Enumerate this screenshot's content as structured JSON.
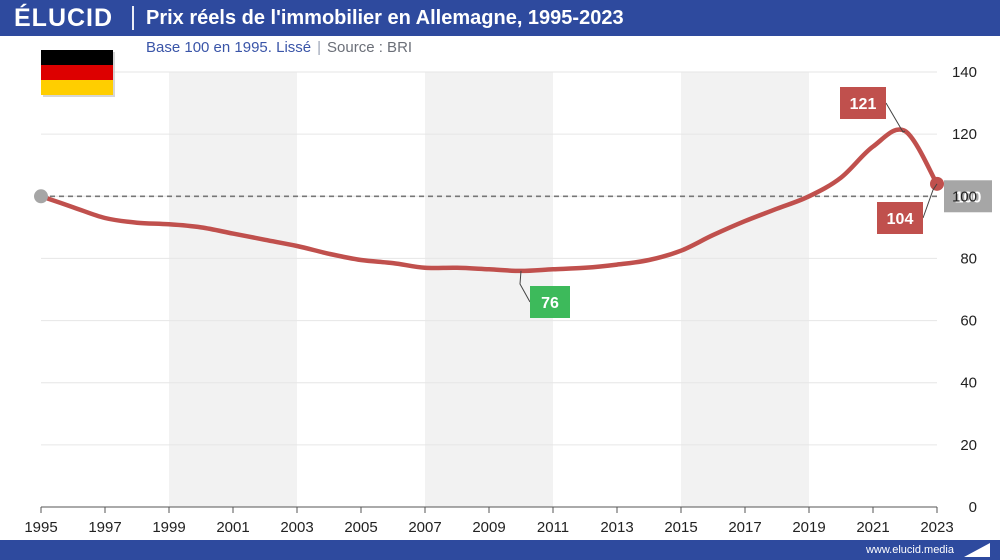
{
  "brand": {
    "logo": "ÉLUCID"
  },
  "header": {
    "title": "Prix réels de l'immobilier en Allemagne, 1995-2023",
    "subtitle": "Base 100 en 1995. Lissé",
    "separator": "|",
    "source": "Source : BRI"
  },
  "footer": {
    "url": "www.elucid.media"
  },
  "colors": {
    "header_bg": "#2e4a9e",
    "line": "#c0504d",
    "low_callout": "#3dba5b",
    "high_callout": "#c0504d",
    "reference_box": "#a6a6a6",
    "band": "#f2f2f2"
  },
  "flag": {
    "icon": "germany-flag-icon",
    "stripes": [
      "#000000",
      "#dd0000",
      "#ffce00"
    ]
  },
  "chart_data": {
    "type": "line",
    "title": "Prix réels de l'immobilier en Allemagne, 1995-2023",
    "subtitle": "Base 100 en 1995. Lissé",
    "xlim": [
      1995,
      2023
    ],
    "ylim": [
      0,
      140
    ],
    "x_ticks": [
      1995,
      1997,
      1999,
      2001,
      2003,
      2005,
      2007,
      2009,
      2011,
      2013,
      2015,
      2017,
      2019,
      2021,
      2023
    ],
    "x_tick_labels": [
      "1995",
      "1997",
      "1999",
      "2001",
      "2003",
      "2005",
      "2007",
      "2009",
      "2011",
      "2013",
      "2015",
      "2017",
      "2019",
      "2021",
      "2023"
    ],
    "y_ticks": [
      0,
      20,
      40,
      60,
      80,
      100,
      120,
      140
    ],
    "y_tick_labels": [
      "0",
      "20",
      "40",
      "60",
      "80",
      "100",
      "120",
      "140"
    ],
    "y_axis_side": "right",
    "alternating_bands": [
      [
        1999,
        2003
      ],
      [
        2007,
        2011
      ],
      [
        2015,
        2019
      ]
    ],
    "reference_line": {
      "y": 100,
      "label": "100",
      "style": "dashed"
    },
    "series": [
      {
        "x": [
          1995,
          1996,
          1997,
          1998,
          1999,
          2000,
          2001,
          2002,
          2003,
          2004,
          2005,
          2006,
          2007,
          2008,
          2009,
          2010,
          2011,
          2012,
          2013,
          2014,
          2015,
          2016,
          2017,
          2018,
          2019,
          2020,
          2021,
          2022,
          2023
        ],
        "y": [
          100,
          96.5,
          93,
          91.5,
          91,
          90,
          88,
          86,
          84,
          81.5,
          79.5,
          78.5,
          77,
          77,
          76.5,
          76,
          76.5,
          77,
          78,
          79.5,
          82.5,
          87.5,
          92,
          96,
          100,
          106,
          116,
          121,
          104
        ]
      }
    ],
    "callouts": [
      {
        "label": "121",
        "x": 2022,
        "y": 121
      },
      {
        "label": "76",
        "x": 2010,
        "y": 76
      },
      {
        "label": "104",
        "x": 2023,
        "y": 104
      }
    ]
  }
}
